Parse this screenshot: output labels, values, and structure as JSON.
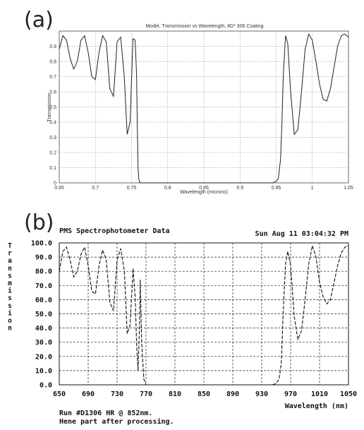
{
  "panels": {
    "a": "(a)",
    "b": "(b)"
  },
  "chart_data": [
    {
      "type": "line",
      "title": "Model, Transmission vs Wavelength, #D* 306 Coating",
      "xlabel": "Wavelength (microns)",
      "ylabel": "Transmission",
      "xlim": [
        0.65,
        1.05
      ],
      "ylim": [
        0,
        1
      ],
      "x_ticks": [
        "0.65",
        "0.7",
        "0.75",
        "0.8",
        "0.85",
        "0.9",
        "0.95",
        "1",
        "1.05"
      ],
      "x_tick_values": [
        0.65,
        0.7,
        0.75,
        0.8,
        0.85,
        0.9,
        0.95,
        1.0,
        1.05
      ],
      "y_ticks": [
        "0",
        "0.1",
        "0.2",
        "0.3",
        "0.4",
        "0.5",
        "0.6",
        "0.7",
        "0.8",
        "0.9",
        "1"
      ],
      "y_tick_values": [
        0,
        0.1,
        0.2,
        0.3,
        0.4,
        0.5,
        0.6,
        0.7,
        0.8,
        0.9,
        1.0
      ],
      "grid": true,
      "x": [
        0.65,
        0.655,
        0.66,
        0.665,
        0.67,
        0.675,
        0.68,
        0.685,
        0.69,
        0.695,
        0.7,
        0.705,
        0.71,
        0.715,
        0.72,
        0.725,
        0.73,
        0.735,
        0.74,
        0.744,
        0.748,
        0.752,
        0.755,
        0.757,
        0.758,
        0.759,
        0.76,
        0.762,
        0.765,
        0.77,
        0.8,
        0.85,
        0.9,
        0.93,
        0.945,
        0.95,
        0.953,
        0.956,
        0.958,
        0.96,
        0.963,
        0.966,
        0.97,
        0.975,
        0.98,
        0.985,
        0.99,
        0.995,
        1.0,
        1.005,
        1.01,
        1.015,
        1.02,
        1.025,
        1.03,
        1.035,
        1.04,
        1.045,
        1.05
      ],
      "y": [
        0.88,
        0.97,
        0.94,
        0.82,
        0.75,
        0.8,
        0.94,
        0.97,
        0.86,
        0.7,
        0.68,
        0.86,
        0.97,
        0.93,
        0.62,
        0.57,
        0.93,
        0.96,
        0.7,
        0.32,
        0.4,
        0.95,
        0.94,
        0.7,
        0.35,
        0.1,
        0.02,
        0.0,
        0.0,
        0.0,
        0.0,
        0.0,
        0.0,
        0.0,
        0.0,
        0.01,
        0.03,
        0.15,
        0.4,
        0.72,
        0.97,
        0.92,
        0.6,
        0.32,
        0.35,
        0.6,
        0.88,
        0.98,
        0.94,
        0.8,
        0.65,
        0.55,
        0.54,
        0.62,
        0.76,
        0.9,
        0.97,
        0.98,
        0.96
      ]
    },
    {
      "type": "line",
      "title": "PMS Spectrophotometer Data",
      "subtitle": "Sun Aug 11 03:04:32 PM",
      "xlabel": "Wavelength (nm)",
      "ylabel": "Transmission",
      "xlim": [
        650,
        1050
      ],
      "ylim": [
        0,
        100
      ],
      "x_ticks": [
        "650",
        "690",
        "730",
        "770",
        "810",
        "850",
        "890",
        "930",
        "970",
        "1010",
        "1050"
      ],
      "x_tick_values": [
        650,
        690,
        730,
        770,
        810,
        850,
        890,
        930,
        970,
        1010,
        1050
      ],
      "y_ticks": [
        "0.0",
        "10.0",
        "20.0",
        "30.0",
        "40.0",
        "50.0",
        "60.0",
        "70.0",
        "80.0",
        "90.0",
        "100.0"
      ],
      "y_tick_values": [
        0,
        10,
        20,
        30,
        40,
        50,
        60,
        70,
        80,
        90,
        100
      ],
      "grid": true,
      "notes": [
        "Run #D1306 HR @ 852nm.",
        "Hene part after processing."
      ],
      "x": [
        650,
        655,
        660,
        665,
        670,
        675,
        680,
        685,
        690,
        695,
        700,
        705,
        710,
        715,
        720,
        725,
        730,
        735,
        740,
        744,
        748,
        752,
        755,
        757,
        759,
        761,
        762,
        764,
        767,
        770,
        800,
        850,
        900,
        930,
        945,
        950,
        954,
        957,
        960,
        963,
        966,
        970,
        975,
        980,
        985,
        990,
        995,
        1000,
        1005,
        1010,
        1015,
        1020,
        1025,
        1030,
        1035,
        1040,
        1045,
        1050
      ],
      "y": [
        80,
        94,
        97,
        88,
        76,
        80,
        92,
        97,
        84,
        66,
        64,
        84,
        95,
        88,
        58,
        52,
        88,
        96,
        80,
        36,
        42,
        82,
        62,
        28,
        10,
        42,
        74,
        30,
        4,
        0,
        0,
        0,
        0,
        0,
        0,
        1,
        4,
        15,
        55,
        85,
        94,
        84,
        48,
        32,
        38,
        60,
        85,
        98,
        90,
        72,
        62,
        57,
        60,
        72,
        84,
        93,
        97,
        98
      ]
    }
  ]
}
